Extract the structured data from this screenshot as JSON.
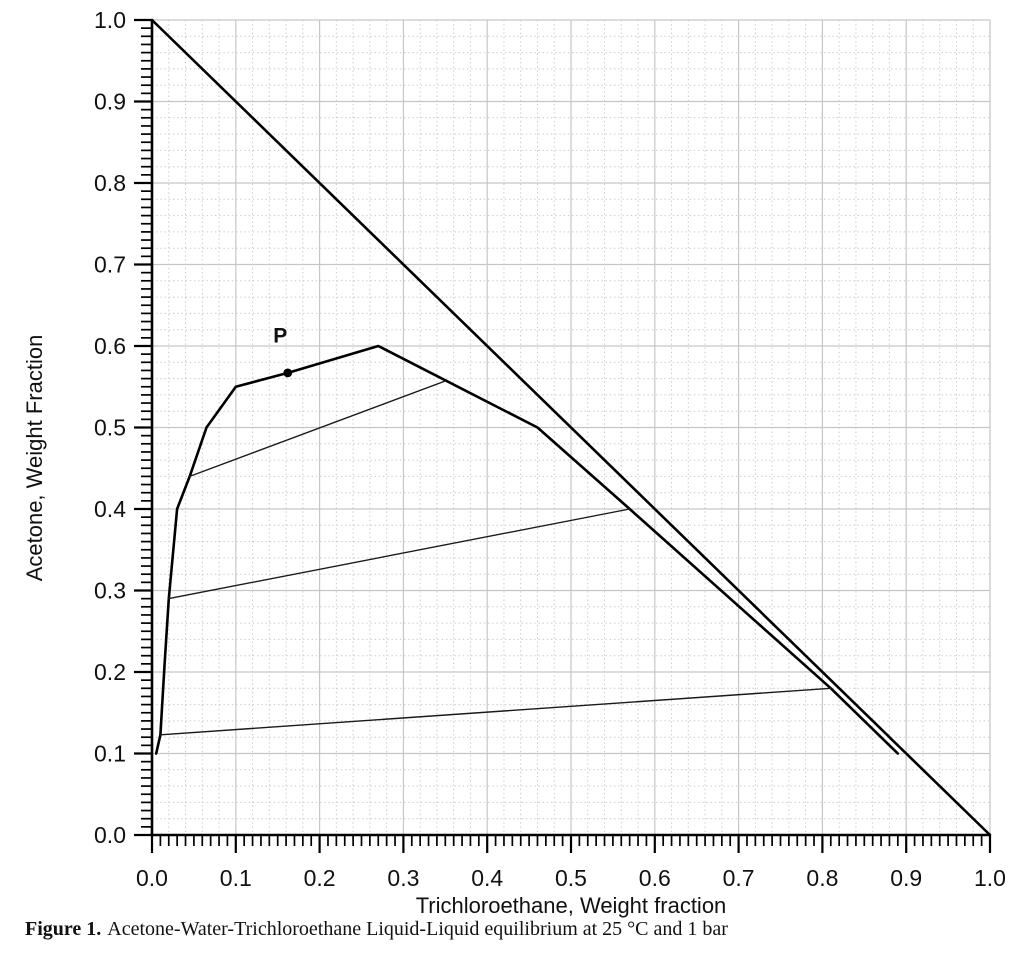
{
  "figure": {
    "caption_label": "Figure 1.",
    "caption_text": "Acetone-Water-Trichloroethane Liquid-Liquid equilibrium at 25 °C and 1 bar"
  },
  "chart_data": {
    "type": "line",
    "title": "",
    "xlabel": "Trichloroethane, Weight fraction",
    "ylabel": "Acetone, Weight Fraction",
    "xlim": [
      0.0,
      1.0
    ],
    "ylim": [
      0.0,
      1.0
    ],
    "x_tick_labels": [
      "0.0",
      "0.1",
      "0.2",
      "0.3",
      "0.4",
      "0.5",
      "0.6",
      "0.7",
      "0.8",
      "0.9",
      "1.0"
    ],
    "y_tick_labels": [
      "0.0",
      "0.1",
      "0.2",
      "0.3",
      "0.4",
      "0.5",
      "0.6",
      "0.7",
      "0.8",
      "0.9",
      "1.0"
    ],
    "major_tick_step": 0.1,
    "minor_tick_step": 0.01,
    "grid": {
      "major_step": 0.1,
      "minor_step": 0.02,
      "major_color": "#c6c6c6",
      "minor_color": "#c9c9c9",
      "minor_style": "dotted",
      "shown": true
    },
    "legend": "none",
    "axis_color": "#000000",
    "series": [
      {
        "name": "mixture-diagonal",
        "role": "diagonal",
        "stroke_width": 2.6,
        "color": "#000000",
        "points": [
          [
            0.0,
            1.0
          ],
          [
            1.0,
            0.0
          ]
        ]
      },
      {
        "name": "binodal-curve",
        "role": "binodal",
        "stroke_width": 2.6,
        "color": "#000000",
        "points": [
          [
            0.005,
            0.1
          ],
          [
            0.01,
            0.123
          ],
          [
            0.015,
            0.21
          ],
          [
            0.02,
            0.29
          ],
          [
            0.03,
            0.4
          ],
          [
            0.045,
            0.44
          ],
          [
            0.065,
            0.5
          ],
          [
            0.1,
            0.55
          ],
          [
            0.162,
            0.567
          ],
          [
            0.27,
            0.6
          ],
          [
            0.46,
            0.5
          ],
          [
            0.57,
            0.4
          ],
          [
            0.81,
            0.18
          ],
          [
            0.89,
            0.1
          ]
        ]
      },
      {
        "name": "tie-line-1",
        "role": "tie-line",
        "stroke_width": 1.4,
        "color": "#1a1a1a",
        "points": [
          [
            0.01,
            0.123
          ],
          [
            0.81,
            0.18
          ]
        ]
      },
      {
        "name": "tie-line-2",
        "role": "tie-line",
        "stroke_width": 1.4,
        "color": "#1a1a1a",
        "points": [
          [
            0.02,
            0.29
          ],
          [
            0.57,
            0.4
          ]
        ]
      },
      {
        "name": "tie-line-3",
        "role": "tie-line",
        "stroke_width": 1.4,
        "color": "#1a1a1a",
        "points": [
          [
            0.045,
            0.44
          ],
          [
            0.35,
            0.557
          ]
        ]
      }
    ],
    "annotations": [
      {
        "label": "P",
        "x": 0.162,
        "y": 0.567,
        "label_x": 0.153,
        "label_y": 0.604,
        "marker": "filled-circle",
        "marker_radius": 4.4,
        "color": "#000000"
      }
    ]
  }
}
